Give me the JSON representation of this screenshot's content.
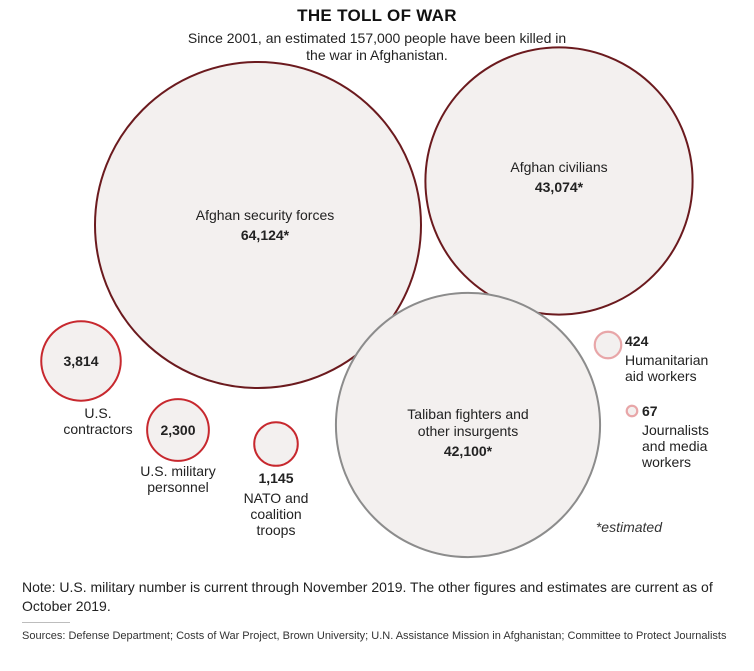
{
  "chart_data": {
    "type": "bubble",
    "title": "THE TOLL OF WAR",
    "subtitle": "Since 2001, an estimated 157,000 people have been killed in the war in Afghanistan.",
    "series": [
      {
        "name": "Afghan security forces",
        "value": 64124,
        "value_label": "64,124*",
        "label_lines": [
          "Afghan security forces"
        ],
        "estimated": true,
        "color": "#6b1a1e",
        "fill": "#f3f0ef"
      },
      {
        "name": "Afghan civilians",
        "value": 43074,
        "value_label": "43,074*",
        "label_lines": [
          "Afghan civilians"
        ],
        "estimated": true,
        "color": "#6b1a1e",
        "fill": "#f3f0ef"
      },
      {
        "name": "Taliban fighters and other insurgents",
        "value": 42100,
        "value_label": "42,100*",
        "label_lines": [
          "Taliban fighters and",
          "other insurgents"
        ],
        "estimated": true,
        "color": "#8c8c8c",
        "fill": "#f3f0ef"
      },
      {
        "name": "U.S. contractors",
        "value": 3814,
        "value_label": "3,814",
        "label_lines": [
          "U.S.",
          "contractors"
        ],
        "estimated": false,
        "color": "#c7282e",
        "fill": "#f3f0ef"
      },
      {
        "name": "U.S. military personnel",
        "value": 2300,
        "value_label": "2,300",
        "label_lines": [
          "U.S. military",
          "personnel"
        ],
        "estimated": false,
        "color": "#c7282e",
        "fill": "#f3f0ef"
      },
      {
        "name": "NATO and coalition troops",
        "value": 1145,
        "value_label": "1,145",
        "label_lines": [
          "NATO and",
          "coalition",
          "troops"
        ],
        "estimated": false,
        "color": "#c7282e",
        "fill": "#f3f0ef"
      },
      {
        "name": "Humanitarian aid workers",
        "value": 424,
        "value_label": "424",
        "label_lines": [
          "Humanitarian",
          "aid workers"
        ],
        "estimated": false,
        "color": "#e8a6a8",
        "fill": "#f3f0ef"
      },
      {
        "name": "Journalists and media workers",
        "value": 67,
        "value_label": "67",
        "label_lines": [
          "Journalists",
          "and media",
          "workers"
        ],
        "estimated": false,
        "color": "#e8a6a8",
        "fill": "#f3f0ef"
      }
    ],
    "annotation": "*estimated"
  },
  "note": "Note: U.S. military number is current through November 2019. The other figures and estimates are current as of October 2019.",
  "sources": "Sources: Defense Department; Costs of War Project, Brown University; U.N. Assistance Mission in Afghanistan; Committee to Protect Journalists"
}
